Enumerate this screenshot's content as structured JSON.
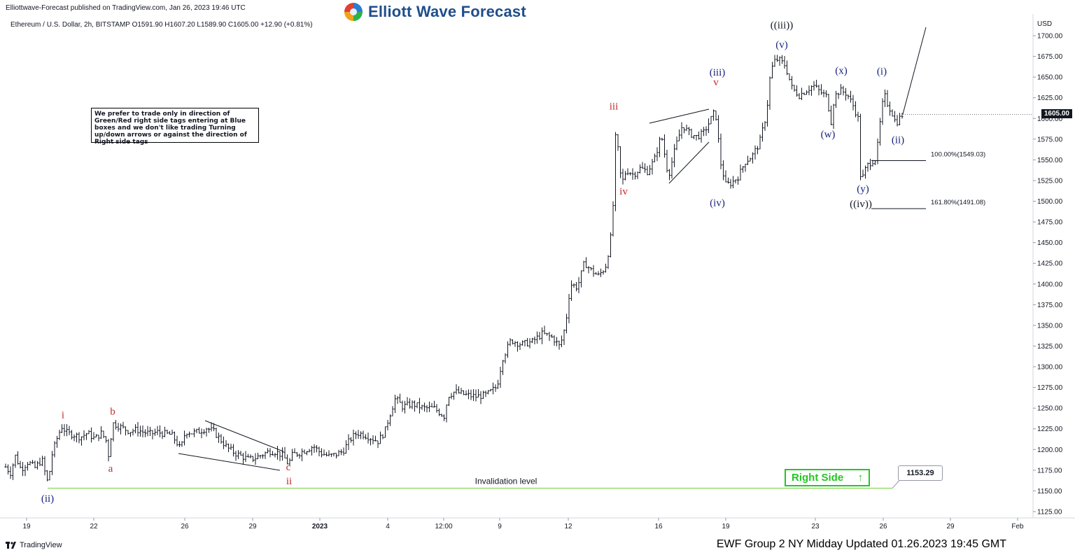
{
  "header": {
    "published": "Elliottwave-Forecast published on TradingView.com, Jan 26, 2023 19:46 UTC",
    "symbol_line": "Ethereum / U.S. Dollar, 2h, BITSTAMP  O1591.90  H1607.20  L1589.90  C1605.00  +12.90 (+0.81%)",
    "brand": "Elliott Wave Forecast",
    "logo_icon": "ewf-swirl-icon"
  },
  "note": "We prefer to trade only in direction of Green/Red right side tags entering at Blue boxes and we don't like trading Turning up/down arrows or against the direction of Right side tags",
  "footer": {
    "tradingview": "TradingView",
    "update": "EWF Group 2 NY Midday Updated 01.26.2023 19:45 GMT"
  },
  "right_side": {
    "label": "Right Side",
    "arrow_icon": "up-arrow-icon",
    "color": "#22c722"
  },
  "invalidation_value": "1153.29",
  "colors": {
    "red_label": "#c62828",
    "blue_label": "#1a237e",
    "invalidation": "#76d13b"
  },
  "chart_data": {
    "type": "ohlc",
    "ylabel": "USD",
    "current_price": "1605.00",
    "y_range": [
      1115,
      1715
    ],
    "y_ticks": [
      1125,
      1150,
      1175,
      1200,
      1225,
      1250,
      1275,
      1300,
      1325,
      1350,
      1375,
      1400,
      1425,
      1450,
      1475,
      1500,
      1525,
      1550,
      1575,
      1600,
      1625,
      1650,
      1675,
      1700
    ],
    "x_ticks": [
      "19",
      "22",
      "26",
      "29",
      "2023",
      "4",
      "12:00",
      "9",
      "12",
      "16",
      "19",
      "23",
      "26",
      "29",
      "Feb"
    ],
    "path_points": [
      [
        0,
        1193
      ],
      [
        5,
        1182
      ],
      [
        15,
        1172
      ],
      [
        22,
        1192
      ],
      [
        30,
        1176
      ],
      [
        40,
        1185
      ],
      [
        50,
        1178
      ],
      [
        60,
        1188
      ],
      [
        66,
        1166
      ],
      [
        69,
        1158
      ],
      [
        73,
        1190
      ],
      [
        80,
        1210
      ],
      [
        88,
        1228
      ],
      [
        96,
        1220
      ],
      [
        105,
        1218
      ],
      [
        115,
        1215
      ],
      [
        125,
        1220
      ],
      [
        135,
        1213
      ],
      [
        145,
        1220
      ],
      [
        152,
        1210
      ],
      [
        156,
        1188
      ],
      [
        160,
        1232
      ],
      [
        166,
        1230
      ],
      [
        175,
        1226
      ],
      [
        185,
        1222
      ],
      [
        195,
        1224
      ],
      [
        205,
        1221
      ],
      [
        215,
        1219
      ],
      [
        225,
        1221
      ],
      [
        235,
        1219
      ],
      [
        245,
        1218
      ],
      [
        253,
        1208
      ],
      [
        258,
        1200
      ],
      [
        265,
        1222
      ],
      [
        275,
        1220
      ],
      [
        285,
        1222
      ],
      [
        295,
        1226
      ],
      [
        305,
        1222
      ],
      [
        315,
        1212
      ],
      [
        325,
        1202
      ],
      [
        335,
        1196
      ],
      [
        345,
        1192
      ],
      [
        355,
        1188
      ],
      [
        365,
        1190
      ],
      [
        375,
        1194
      ],
      [
        385,
        1198
      ],
      [
        395,
        1197
      ],
      [
        405,
        1192
      ],
      [
        412,
        1182
      ],
      [
        418,
        1194
      ],
      [
        428,
        1196
      ],
      [
        438,
        1200
      ],
      [
        448,
        1204
      ],
      [
        458,
        1196
      ],
      [
        470,
        1192
      ],
      [
        480,
        1194
      ],
      [
        490,
        1198
      ],
      [
        500,
        1212
      ],
      [
        510,
        1220
      ],
      [
        520,
        1218
      ],
      [
        530,
        1214
      ],
      [
        540,
        1210
      ],
      [
        550,
        1222
      ],
      [
        556,
        1240
      ],
      [
        565,
        1262
      ],
      [
        575,
        1252
      ],
      [
        590,
        1255
      ],
      [
        605,
        1250
      ],
      [
        620,
        1250
      ],
      [
        635,
        1240
      ],
      [
        640,
        1265
      ],
      [
        650,
        1270
      ],
      [
        665,
        1266
      ],
      [
        680,
        1264
      ],
      [
        695,
        1266
      ],
      [
        710,
        1276
      ],
      [
        718,
        1310
      ],
      [
        730,
        1332
      ],
      [
        745,
        1327
      ],
      [
        760,
        1330
      ],
      [
        775,
        1340
      ],
      [
        790,
        1335
      ],
      [
        800,
        1324
      ],
      [
        808,
        1350
      ],
      [
        815,
        1400
      ],
      [
        825,
        1396
      ],
      [
        835,
        1426
      ],
      [
        845,
        1416
      ],
      [
        855,
        1410
      ],
      [
        865,
        1420
      ],
      [
        872,
        1450
      ],
      [
        876,
        1495
      ],
      [
        880,
        1588
      ],
      [
        884,
        1554
      ],
      [
        888,
        1520
      ],
      [
        895,
        1538
      ],
      [
        905,
        1532
      ],
      [
        915,
        1540
      ],
      [
        925,
        1536
      ],
      [
        935,
        1550
      ],
      [
        945,
        1580
      ],
      [
        955,
        1530
      ],
      [
        965,
        1565
      ],
      [
        975,
        1592
      ],
      [
        985,
        1582
      ],
      [
        995,
        1578
      ],
      [
        1005,
        1582
      ],
      [
        1015,
        1598
      ],
      [
        1022,
        1610
      ],
      [
        1030,
        1545
      ],
      [
        1037,
        1520
      ],
      [
        1045,
        1522
      ],
      [
        1055,
        1530
      ],
      [
        1065,
        1548
      ],
      [
        1075,
        1555
      ],
      [
        1085,
        1570
      ],
      [
        1095,
        1605
      ],
      [
        1100,
        1648
      ],
      [
        1105,
        1668
      ],
      [
        1112,
        1672
      ],
      [
        1122,
        1664
      ],
      [
        1132,
        1636
      ],
      [
        1142,
        1628
      ],
      [
        1152,
        1634
      ],
      [
        1162,
        1640
      ],
      [
        1172,
        1632
      ],
      [
        1182,
        1626
      ],
      [
        1187,
        1593
      ],
      [
        1192,
        1626
      ],
      [
        1200,
        1634
      ],
      [
        1210,
        1630
      ],
      [
        1220,
        1614
      ],
      [
        1226,
        1600
      ],
      [
        1230,
        1522
      ],
      [
        1238,
        1542
      ],
      [
        1245,
        1548
      ],
      [
        1252,
        1552
      ],
      [
        1258,
        1598
      ],
      [
        1263,
        1630
      ],
      [
        1268,
        1618
      ],
      [
        1275,
        1606
      ],
      [
        1280,
        1594
      ],
      [
        1285,
        1600
      ],
      [
        1290,
        1605
      ]
    ],
    "wave_labels": [
      {
        "text": "(ii)",
        "x": 68,
        "price": 1137,
        "color": "blue"
      },
      {
        "text": "i",
        "x": 90,
        "price": 1238,
        "color": "red"
      },
      {
        "text": "a",
        "x": 158,
        "price": 1173,
        "color": "red"
      },
      {
        "text": "b",
        "x": 161,
        "price": 1242,
        "color": "red"
      },
      {
        "text": "c",
        "x": 412,
        "price": 1175,
        "color": "red"
      },
      {
        "text": "ii",
        "x": 413,
        "price": 1158,
        "color": "red"
      },
      {
        "text": "iii",
        "x": 877,
        "price": 1611,
        "color": "red"
      },
      {
        "text": "iv",
        "x": 891,
        "price": 1508,
        "color": "red"
      },
      {
        "text": "v",
        "x": 1023,
        "price": 1640,
        "color": "red"
      },
      {
        "text": "(iii)",
        "x": 1025,
        "price": 1652,
        "color": "blue"
      },
      {
        "text": "(iv)",
        "x": 1025,
        "price": 1494,
        "color": "blue"
      },
      {
        "text": "((iii))",
        "x": 1117,
        "price": 1709,
        "color": "black"
      },
      {
        "text": "(v)",
        "x": 1117,
        "price": 1685,
        "color": "blue"
      },
      {
        "text": "(w)",
        "x": 1183,
        "price": 1577,
        "color": "blue"
      },
      {
        "text": "(x)",
        "x": 1202,
        "price": 1654,
        "color": "blue"
      },
      {
        "text": "(i)",
        "x": 1260,
        "price": 1653,
        "color": "blue"
      },
      {
        "text": "(ii)",
        "x": 1283,
        "price": 1570,
        "color": "blue"
      },
      {
        "text": "(y)",
        "x": 1233,
        "price": 1511,
        "color": "blue"
      },
      {
        "text": "((iv))",
        "x": 1230,
        "price": 1493,
        "color": "black"
      }
    ],
    "fib_levels": [
      {
        "label": "100.00%(1549.03)",
        "price": 1549.03
      },
      {
        "label": "161.80%(1491.08)",
        "price": 1491.08
      }
    ],
    "invalidation": {
      "label": "Invalidation level",
      "price": 1153.29
    }
  }
}
